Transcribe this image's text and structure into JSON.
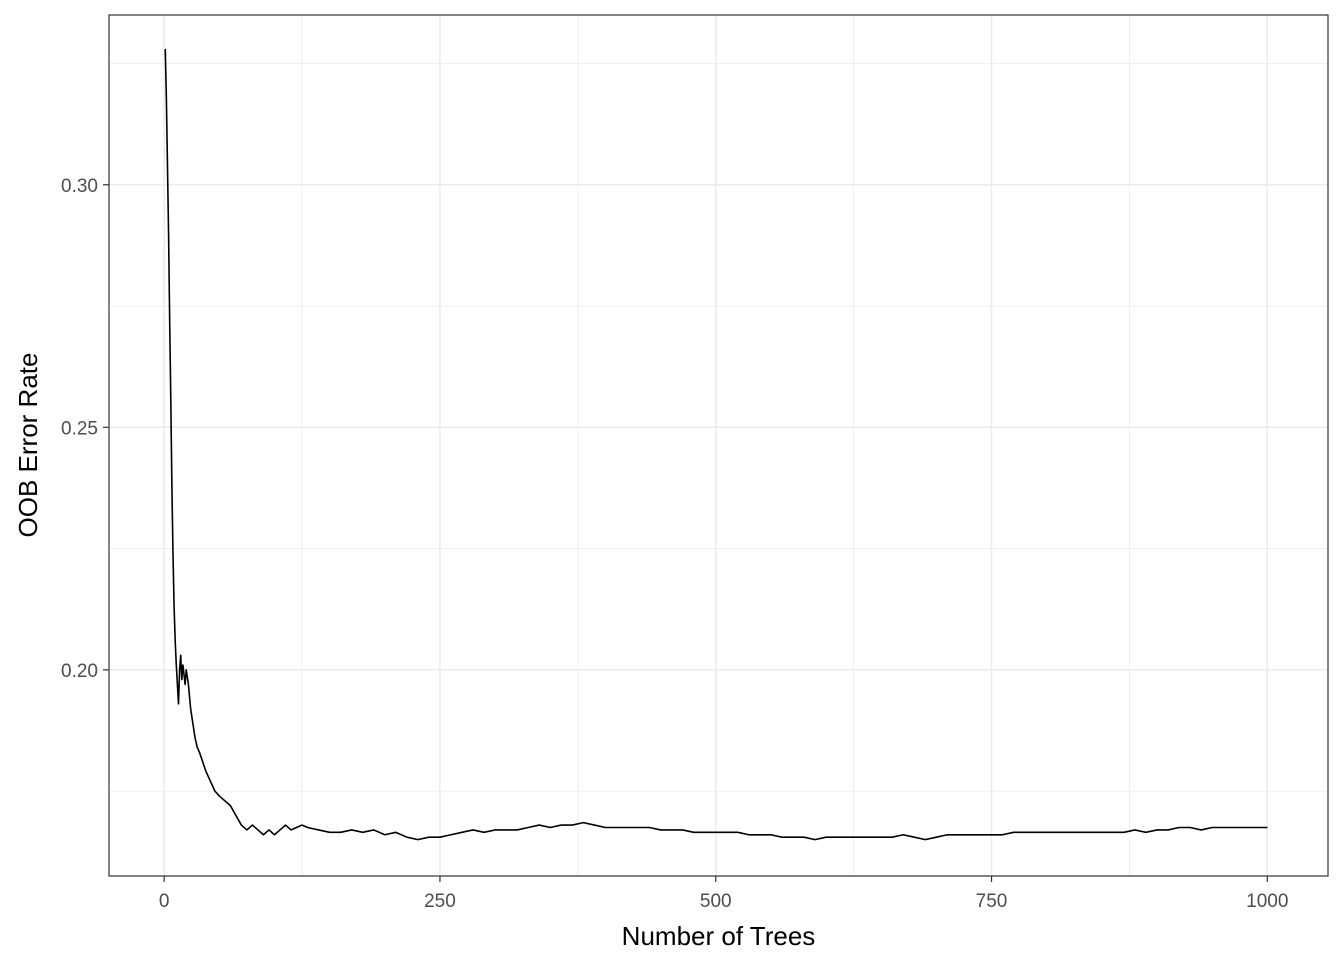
{
  "chart_data": {
    "type": "line",
    "title": "",
    "xlabel": "Number of Trees",
    "ylabel": "OOB Error Rate",
    "xlim": [
      -50,
      1055
    ],
    "ylim": [
      0.1575,
      0.335
    ],
    "x_ticks": [
      0,
      250,
      500,
      750,
      1000
    ],
    "x_tick_labels": [
      "0",
      "250",
      "500",
      "750",
      "1000"
    ],
    "y_ticks": [
      0.2,
      0.25,
      0.3
    ],
    "y_tick_labels": [
      "0.20",
      "0.25",
      "0.30"
    ],
    "grid": true,
    "legend": "none",
    "series": [
      {
        "color": "#000000",
        "points": [
          [
            1,
            0.328
          ],
          [
            2,
            0.318
          ],
          [
            3,
            0.304
          ],
          [
            4,
            0.29
          ],
          [
            5,
            0.272
          ],
          [
            6,
            0.256
          ],
          [
            7,
            0.238
          ],
          [
            8,
            0.224
          ],
          [
            9,
            0.213
          ],
          [
            10,
            0.206
          ],
          [
            11,
            0.201
          ],
          [
            12,
            0.197
          ],
          [
            13,
            0.193
          ],
          [
            14,
            0.2
          ],
          [
            15,
            0.203
          ],
          [
            16,
            0.198
          ],
          [
            17,
            0.201
          ],
          [
            18,
            0.199
          ],
          [
            19,
            0.197
          ],
          [
            20,
            0.2
          ],
          [
            22,
            0.197
          ],
          [
            24,
            0.192
          ],
          [
            26,
            0.189
          ],
          [
            28,
            0.186
          ],
          [
            30,
            0.184
          ],
          [
            32,
            0.183
          ],
          [
            35,
            0.181
          ],
          [
            38,
            0.179
          ],
          [
            42,
            0.177
          ],
          [
            46,
            0.175
          ],
          [
            50,
            0.174
          ],
          [
            55,
            0.173
          ],
          [
            60,
            0.172
          ],
          [
            65,
            0.17
          ],
          [
            70,
            0.168
          ],
          [
            75,
            0.167
          ],
          [
            80,
            0.168
          ],
          [
            85,
            0.167
          ],
          [
            90,
            0.166
          ],
          [
            95,
            0.167
          ],
          [
            100,
            0.166
          ],
          [
            105,
            0.167
          ],
          [
            110,
            0.168
          ],
          [
            115,
            0.167
          ],
          [
            120,
            0.1675
          ],
          [
            125,
            0.168
          ],
          [
            130,
            0.1675
          ],
          [
            140,
            0.167
          ],
          [
            150,
            0.1665
          ],
          [
            160,
            0.1665
          ],
          [
            170,
            0.167
          ],
          [
            180,
            0.1665
          ],
          [
            190,
            0.167
          ],
          [
            200,
            0.166
          ],
          [
            210,
            0.1665
          ],
          [
            220,
            0.1655
          ],
          [
            230,
            0.165
          ],
          [
            240,
            0.1655
          ],
          [
            250,
            0.1655
          ],
          [
            260,
            0.166
          ],
          [
            270,
            0.1665
          ],
          [
            280,
            0.167
          ],
          [
            290,
            0.1665
          ],
          [
            300,
            0.167
          ],
          [
            310,
            0.167
          ],
          [
            320,
            0.167
          ],
          [
            330,
            0.1675
          ],
          [
            340,
            0.168
          ],
          [
            350,
            0.1675
          ],
          [
            360,
            0.168
          ],
          [
            370,
            0.168
          ],
          [
            380,
            0.1685
          ],
          [
            390,
            0.168
          ],
          [
            400,
            0.1675
          ],
          [
            410,
            0.1675
          ],
          [
            420,
            0.1675
          ],
          [
            430,
            0.1675
          ],
          [
            440,
            0.1675
          ],
          [
            450,
            0.167
          ],
          [
            460,
            0.167
          ],
          [
            470,
            0.167
          ],
          [
            480,
            0.1665
          ],
          [
            490,
            0.1665
          ],
          [
            500,
            0.1665
          ],
          [
            510,
            0.1665
          ],
          [
            520,
            0.1665
          ],
          [
            530,
            0.166
          ],
          [
            540,
            0.166
          ],
          [
            550,
            0.166
          ],
          [
            560,
            0.1655
          ],
          [
            570,
            0.1655
          ],
          [
            580,
            0.1655
          ],
          [
            590,
            0.165
          ],
          [
            600,
            0.1655
          ],
          [
            610,
            0.1655
          ],
          [
            620,
            0.1655
          ],
          [
            630,
            0.1655
          ],
          [
            640,
            0.1655
          ],
          [
            650,
            0.1655
          ],
          [
            660,
            0.1655
          ],
          [
            670,
            0.166
          ],
          [
            680,
            0.1655
          ],
          [
            690,
            0.165
          ],
          [
            700,
            0.1655
          ],
          [
            710,
            0.166
          ],
          [
            720,
            0.166
          ],
          [
            730,
            0.166
          ],
          [
            740,
            0.166
          ],
          [
            750,
            0.166
          ],
          [
            760,
            0.166
          ],
          [
            770,
            0.1665
          ],
          [
            780,
            0.1665
          ],
          [
            790,
            0.1665
          ],
          [
            800,
            0.1665
          ],
          [
            810,
            0.1665
          ],
          [
            820,
            0.1665
          ],
          [
            830,
            0.1665
          ],
          [
            840,
            0.1665
          ],
          [
            850,
            0.1665
          ],
          [
            860,
            0.1665
          ],
          [
            870,
            0.1665
          ],
          [
            880,
            0.167
          ],
          [
            890,
            0.1665
          ],
          [
            900,
            0.167
          ],
          [
            910,
            0.167
          ],
          [
            920,
            0.1675
          ],
          [
            930,
            0.1675
          ],
          [
            940,
            0.167
          ],
          [
            950,
            0.1675
          ],
          [
            960,
            0.1675
          ],
          [
            970,
            0.1675
          ],
          [
            980,
            0.1675
          ],
          [
            990,
            0.1675
          ],
          [
            1000,
            0.1675
          ]
        ]
      }
    ]
  }
}
